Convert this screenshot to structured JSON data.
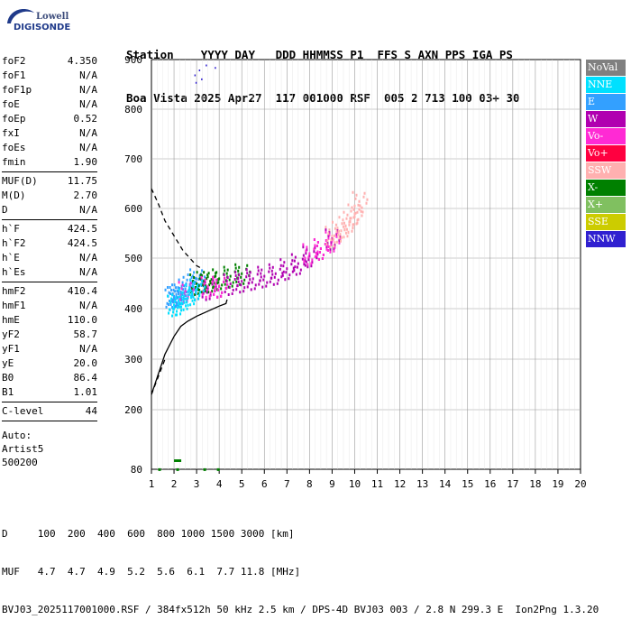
{
  "logo": {
    "line1": "Lowell",
    "line2": "DIGISONDE"
  },
  "header": {
    "row1": "Station    YYYY DAY   DDD HHMMSS P1  FFS S AXN PPS IGA PS",
    "row2": "Boa Vista 2025 Apr27  117 001000 RSF  005 2 713 100 03+ 30"
  },
  "params": {
    "group1": [
      {
        "label": "foF2",
        "value": "4.350"
      },
      {
        "label": "foF1",
        "value": "N/A"
      },
      {
        "label": "foF1p",
        "value": "N/A"
      },
      {
        "label": "foE",
        "value": "N/A"
      },
      {
        "label": "foEp",
        "value": "0.52"
      },
      {
        "label": "fxI",
        "value": "N/A"
      },
      {
        "label": "foEs",
        "value": "N/A"
      },
      {
        "label": "fmin",
        "value": "1.90"
      }
    ],
    "group2": [
      {
        "label": "MUF(D)",
        "value": "11.75"
      },
      {
        "label": "M(D)",
        "value": "2.70"
      },
      {
        "label": "D",
        "value": "N/A"
      }
    ],
    "group3": [
      {
        "label": "h`F",
        "value": "424.5"
      },
      {
        "label": "h`F2",
        "value": "424.5"
      },
      {
        "label": "h`E",
        "value": "N/A"
      },
      {
        "label": "h`Es",
        "value": "N/A"
      }
    ],
    "group4": [
      {
        "label": "hmF2",
        "value": "410.4"
      },
      {
        "label": "hmF1",
        "value": "N/A"
      },
      {
        "label": "hmE",
        "value": "110.0"
      },
      {
        "label": "yF2",
        "value": "58.7"
      },
      {
        "label": "yF1",
        "value": "N/A"
      },
      {
        "label": "yE",
        "value": "20.0"
      },
      {
        "label": "B0",
        "value": "86.4"
      },
      {
        "label": "B1",
        "value": "1.01"
      }
    ],
    "clevel": {
      "label": "C-level",
      "value": "44"
    },
    "auto": [
      "Auto:",
      "Artist5",
      "500200"
    ]
  },
  "legend": [
    {
      "name": "NoVal",
      "color": "#808080"
    },
    {
      "name": "NNE",
      "color": "#00e0ff"
    },
    {
      "name": "E",
      "color": "#33a0ff"
    },
    {
      "name": "W",
      "color": "#b000b0"
    },
    {
      "name": "Vo-",
      "color": "#ff2ad4"
    },
    {
      "name": "Vo+",
      "color": "#ff0040"
    },
    {
      "name": "SSW",
      "color": "#ffb0b0"
    },
    {
      "name": "X-",
      "color": "#008000"
    },
    {
      "name": "X+",
      "color": "#80c060"
    },
    {
      "name": "SSE",
      "color": "#cccc00"
    },
    {
      "name": "NNW",
      "color": "#3020d0"
    }
  ],
  "bottom": {
    "d_row": "D     100  200  400  600  800 1000 1500 3000 [km]",
    "muf_row": "MUF   4.7  4.7  4.9  5.2  5.6  6.1  7.7 11.8 [MHz]",
    "footer": "BVJ03_2025117001000.RSF / 384fx512h 50 kHz 2.5 km / DPS-4D BVJ03 003 / 2.8 N 299.3 E  Ion2Png 1.3.20"
  },
  "chart_data": {
    "type": "scatter",
    "title": "",
    "xlabel": "",
    "ylabel": "",
    "xlim": [
      1,
      20
    ],
    "ylim": [
      80,
      900
    ],
    "x_ticks": [
      1,
      2,
      3,
      4,
      5,
      6,
      7,
      8,
      9,
      10,
      11,
      12,
      13,
      14,
      15,
      16,
      17,
      18,
      19,
      20
    ],
    "y_ticks": [
      80,
      200,
      300,
      400,
      500,
      600,
      700,
      800,
      900
    ],
    "grid": true,
    "series": [
      {
        "name": "E",
        "color": "#33a0ff",
        "x": [
          1.9,
          2.0,
          2.1,
          2.2,
          2.3,
          2.5,
          2.7,
          2.9,
          3.0
        ],
        "y": [
          420,
          425,
          425,
          430,
          430,
          440,
          445,
          450,
          460
        ]
      },
      {
        "name": "X-",
        "color": "#008000",
        "x": [
          3.0,
          3.3,
          3.6,
          4.0,
          4.5,
          5.0
        ],
        "y": [
          450,
          455,
          455,
          460,
          465,
          470
        ]
      },
      {
        "name": "W",
        "color": "#b000b0",
        "x": [
          3.5,
          4.0,
          4.5,
          5.0,
          5.5,
          6.0,
          6.5,
          7.0,
          7.5,
          8.0,
          8.5,
          9.0
        ],
        "y": [
          440,
          445,
          450,
          455,
          460,
          465,
          470,
          480,
          490,
          505,
          520,
          540
        ]
      },
      {
        "name": "Vo-",
        "color": "#ff2ad4",
        "x": [
          2.5,
          3.0,
          3.5,
          4.0,
          8.0,
          8.5,
          9.0
        ],
        "y": [
          435,
          440,
          445,
          445,
          510,
          520,
          535
        ]
      },
      {
        "name": "SSW",
        "color": "#ffb0b0",
        "x": [
          9.0,
          9.3,
          9.6,
          9.8,
          10.0,
          10.2
        ],
        "y": [
          545,
          555,
          565,
          575,
          590,
          615
        ]
      },
      {
        "name": "NNE",
        "color": "#00e0ff",
        "x": [
          2.0,
          2.2,
          2.5,
          2.8,
          3.0
        ],
        "y": [
          408,
          410,
          420,
          430,
          440
        ]
      }
    ],
    "profile": {
      "x": [
        1.0,
        1.3,
        1.6,
        2.0,
        2.3,
        2.6,
        3.0,
        3.5,
        4.0,
        4.3,
        4.35
      ],
      "y": [
        230,
        270,
        310,
        345,
        365,
        375,
        385,
        395,
        405,
        410,
        418
      ]
    },
    "topside": {
      "x": [
        1.0,
        1.3,
        1.6,
        2.0,
        2.4,
        2.8,
        3.0,
        3.2
      ],
      "y": [
        640,
        610,
        575,
        545,
        515,
        495,
        485,
        480
      ]
    }
  }
}
